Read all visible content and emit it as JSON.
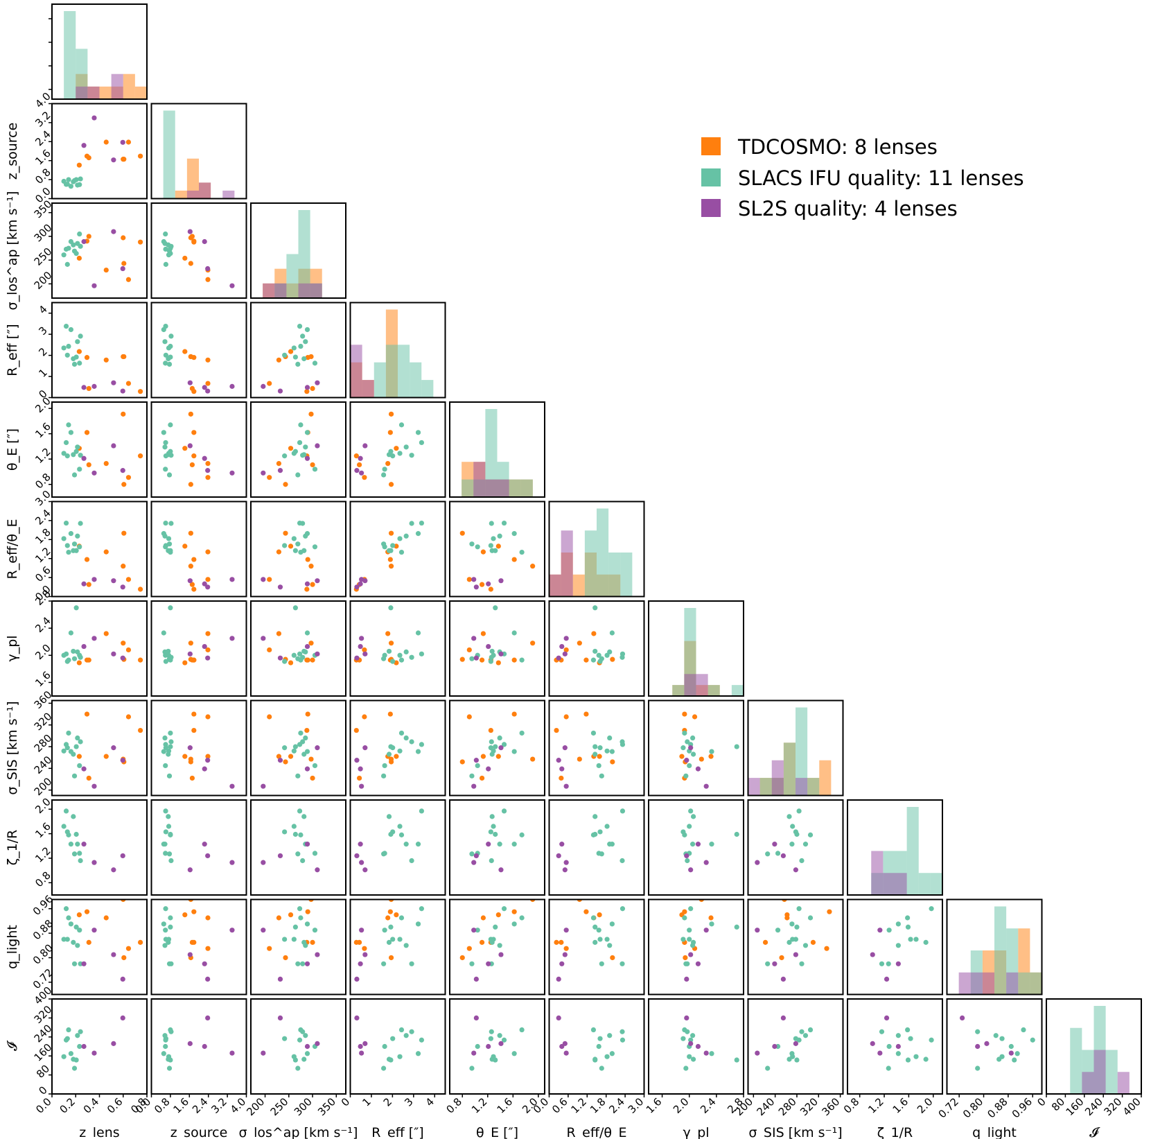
{
  "chart_data": {
    "type": "scatter",
    "title": "",
    "variables": [
      {
        "name": "z_lens",
        "label": "z_lens",
        "ticks": [
          0.0,
          0.2,
          0.4,
          0.6,
          0.8
        ],
        "range": [
          0.0,
          0.8
        ]
      },
      {
        "name": "z_source",
        "label": "z_source",
        "ticks": [
          0.0,
          0.8,
          1.6,
          2.4,
          3.2,
          4.0
        ],
        "range": [
          0.0,
          4.0
        ]
      },
      {
        "name": "sigma_ap",
        "label": "σ_los^ap [km s⁻¹]",
        "ticks": [
          200,
          250,
          300,
          350
        ],
        "range": [
          170,
          370
        ]
      },
      {
        "name": "R_eff",
        "label": "R_eff [″]",
        "ticks": [
          0,
          1,
          2,
          3,
          4
        ],
        "range": [
          0,
          4.5
        ]
      },
      {
        "name": "theta_E",
        "label": "θ_E [″]",
        "ticks": [
          0.8,
          1.2,
          1.6,
          2.0
        ],
        "range": [
          0.6,
          2.1
        ]
      },
      {
        "name": "Reff_thetaE",
        "label": "R_eff/θ_E",
        "ticks": [
          0.0,
          0.6,
          1.2,
          1.8,
          2.4,
          3.0
        ],
        "range": [
          0.0,
          3.0
        ]
      },
      {
        "name": "gamma_pl",
        "label": "γ_pl",
        "ticks": [
          1.6,
          2.0,
          2.4,
          2.8
        ],
        "range": [
          1.4,
          2.8
        ]
      },
      {
        "name": "sigma_SIS",
        "label": "σ_SIS [km s⁻¹]",
        "ticks": [
          200,
          240,
          280,
          320,
          360
        ],
        "range": [
          190,
          365
        ]
      },
      {
        "name": "zeta",
        "label": "ζ_1/R",
        "ticks": [
          0.8,
          1.2,
          1.6,
          2.0
        ],
        "range": [
          0.6,
          2.15
        ]
      },
      {
        "name": "q_light",
        "label": "q_light",
        "ticks": [
          0.72,
          0.8,
          0.88,
          0.96
        ],
        "range": [
          0.68,
          0.99
        ]
      },
      {
        "name": "I",
        "label": "𝓘",
        "ticks": [
          0,
          80,
          160,
          240,
          320,
          400
        ],
        "range": [
          0,
          400
        ]
      }
    ],
    "series": [
      {
        "name": "TDCOSMO",
        "count": 8,
        "color": "#ff7f0e",
        "points": [
          [
            0.295,
            1.79,
            290,
            1.9,
            1.62,
            1.17,
            1.93,
            340,
            null,
            0.95,
            null
          ],
          [
            0.745,
            1.79,
            288,
            0.29,
            1.25,
            0.23,
            1.93,
            310,
            null,
            0.85,
            null
          ],
          [
            0.606,
            1.66,
            243,
            1.94,
            0.8,
            2.0,
            1.94,
            252,
            null,
            0.8,
            null
          ],
          [
            0.645,
            2.38,
            209,
            0.67,
            0.91,
            0.54,
            2.08,
            335,
            null,
            0.83,
            null
          ],
          [
            0.311,
            1.72,
            300,
            0.43,
            1.11,
            0.38,
            1.93,
            222,
            null,
            0.85,
            null
          ],
          [
            0.23,
            1.41,
            254,
            2.18,
            1.37,
            1.59,
            1.89,
            262,
            null,
            0.94,
            null
          ],
          [
            0.457,
            2.38,
            229,
            1.78,
            1.13,
            1.41,
            2.32,
            262,
            null,
            0.93,
            null
          ],
          [
            0.6,
            1.66,
            297,
            1.94,
            1.91,
            0.96,
            2.18,
            257,
            null,
            0.99,
            null
          ]
        ]
      },
      {
        "name": "SLACS IFU quality",
        "count": 11,
        "color": "#66c2a5",
        "points": [
          [
            0.1,
            0.73,
            261,
            2.35,
            1.29,
            1.83,
            2.0,
            272,
            1.72,
            0.86,
            157
          ],
          [
            0.12,
            0.6,
            273,
            3.38,
            1.46,
            2.32,
            2.02,
            284,
            1.97,
            0.96,
            227
          ],
          [
            0.13,
            0.61,
            241,
            2.01,
            1.25,
            1.61,
            1.91,
            278,
            1.63,
            0.86,
            233
          ],
          [
            0.14,
            0.8,
            275,
            2.43,
            1.74,
            1.4,
            1.93,
            305,
            1.58,
            0.93,
            270
          ],
          [
            0.16,
            0.52,
            289,
            3.22,
            1.62,
            1.99,
            2.33,
            271,
            1.43,
            0.91,
            170
          ],
          [
            0.18,
            0.71,
            282,
            1.84,
            1.27,
            1.45,
            2.06,
            266,
            1.88,
            0.85,
            146
          ],
          [
            0.19,
            0.76,
            269,
            1.58,
            0.95,
            1.66,
            1.95,
            226,
            1.27,
            0.78,
            108
          ],
          [
            0.205,
            0.8,
            264,
            1.92,
            1.32,
            1.45,
            2.7,
            280,
            1.59,
            0.9,
            143
          ],
          [
            0.215,
            0.57,
            285,
            2.65,
            1.39,
            1.91,
            2.05,
            296,
            1.43,
            0.84,
            246
          ],
          [
            0.232,
            0.59,
            305,
            1.63,
            1.04,
            1.57,
            2.0,
            245,
            1.28,
            0.89,
            200
          ],
          [
            0.24,
            0.83,
            279,
            2.91,
            1.26,
            2.31,
            1.97,
            289,
            1.16,
            0.78,
            262
          ]
        ]
      },
      {
        "name": "SL2S quality",
        "count": 4,
        "color": "#984ea3",
        "points": [
          [
            0.356,
            3.4,
            196,
            0.53,
            0.98,
            0.54,
            2.25,
            207,
            1.13,
            0.89,
            172
          ],
          [
            0.269,
            2.24,
            289,
            0.48,
            1.21,
            0.4,
            2.13,
            239,
            1.43,
            0.78,
            200
          ],
          [
            0.519,
            1.63,
            310,
            0.7,
            1.41,
            0.5,
            2.02,
            278,
            1.01,
            0.81,
            212
          ],
          [
            0.597,
            2.37,
            232,
            0.31,
            1.02,
            0.3,
            1.96,
            255,
            1.24,
            0.73,
            320
          ]
        ]
      }
    ],
    "legend": [
      {
        "label": "TDCOSMO: 8 lenses",
        "color": "#ff7f0e"
      },
      {
        "label": "SLACS IFU quality: 11 lenses",
        "color": "#66c2a5"
      },
      {
        "label": "SL2S quality: 4 lenses",
        "color": "#984ea3"
      }
    ],
    "legend_position": "top-right"
  }
}
